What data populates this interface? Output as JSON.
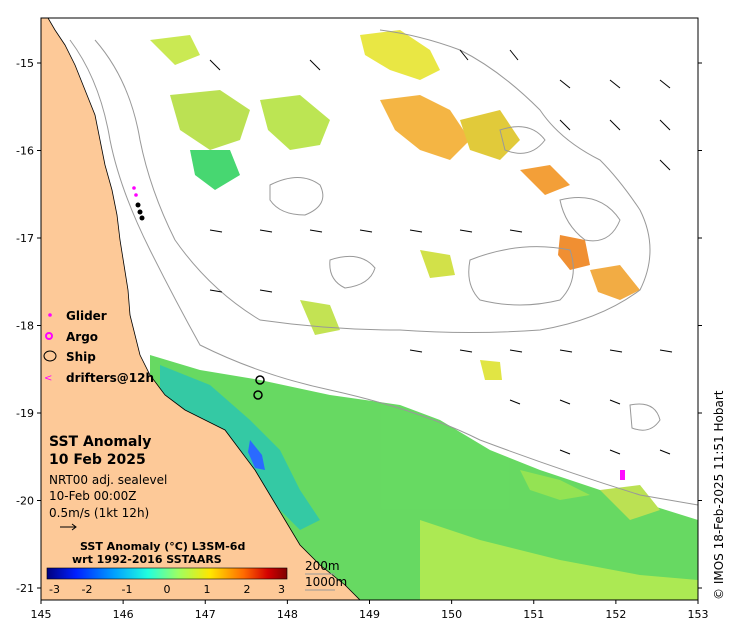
{
  "map": {
    "title_line1": "SST Anomaly",
    "title_line2": "10 Feb 2025",
    "source": "NRT00 adj. sealevel",
    "time": "10-Feb 00:00Z",
    "vector_scale": "0.5m/s (1kt 12h)",
    "colorbar_title_line1": "SST Anomaly (°C) L3SM-6d",
    "colorbar_title_line2": "wrt 1992-2016 SSTAARS",
    "colorbar_ticks": [
      "-3",
      "-2",
      "-1",
      "0",
      "1",
      "2",
      "3"
    ],
    "contour_labels": [
      "200m",
      "1000m"
    ],
    "credit": "© IMOS 18-Feb-2025 11:51 Hobart",
    "x_ticks": [
      "145",
      "146",
      "147",
      "148",
      "149",
      "150",
      "151",
      "152",
      "153"
    ],
    "y_ticks": [
      "-15",
      "-16",
      "-17",
      "-18",
      "-19",
      "-20",
      "-21"
    ],
    "legend": [
      {
        "label": "Glider",
        "marker": "dot",
        "color": "#ff00ff"
      },
      {
        "label": "Argo",
        "marker": "ring",
        "color": "#ff00ff"
      },
      {
        "label": "Ship",
        "marker": "ellipse",
        "color": "#000000"
      },
      {
        "label": "drifters@12h",
        "marker": "arrow",
        "color": "#ff00ff"
      }
    ],
    "colors": {
      "land": "#fdc998",
      "ocean": "#ffffff",
      "contour": "#999999"
    },
    "colorbar_colors": [
      "#00007f",
      "#0020ff",
      "#00a0ff",
      "#20ffdf",
      "#9fff60",
      "#ffe600",
      "#ff6a00",
      "#d40000",
      "#7f0000"
    ]
  }
}
